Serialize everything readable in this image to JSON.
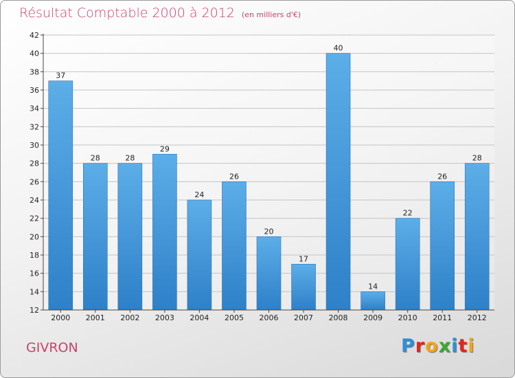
{
  "header": {
    "title": "Résultat Comptable 2000 à 2012",
    "unit": "(en milliers d'€)"
  },
  "footer": {
    "commune": "GIVRON",
    "logo_letters": [
      "P",
      "r",
      "o",
      "x",
      "i",
      "t",
      "i"
    ],
    "logo_colors": [
      "#2f8fd8",
      "#e2261d",
      "#f4a417",
      "#3aa935",
      "#2f8fd8",
      "#e2261d",
      "#f4a417"
    ]
  },
  "chart_data": {
    "type": "bar",
    "title": "Résultat Comptable 2000 à 2012",
    "subtitle": "(en milliers d'€)",
    "categories": [
      "2000",
      "2001",
      "2002",
      "2003",
      "2004",
      "2005",
      "2006",
      "2007",
      "2008",
      "2009",
      "2010",
      "2011",
      "2012"
    ],
    "values": [
      37,
      28,
      28,
      29,
      24,
      26,
      20,
      17,
      40,
      14,
      22,
      26,
      28
    ],
    "ylim": [
      12,
      42
    ],
    "yticks": [
      12,
      14,
      16,
      18,
      20,
      22,
      24,
      26,
      28,
      30,
      32,
      34,
      36,
      38,
      40,
      42
    ],
    "grid": true,
    "xlabel": "",
    "ylabel": "",
    "bar_color": "#4a9fe0"
  }
}
